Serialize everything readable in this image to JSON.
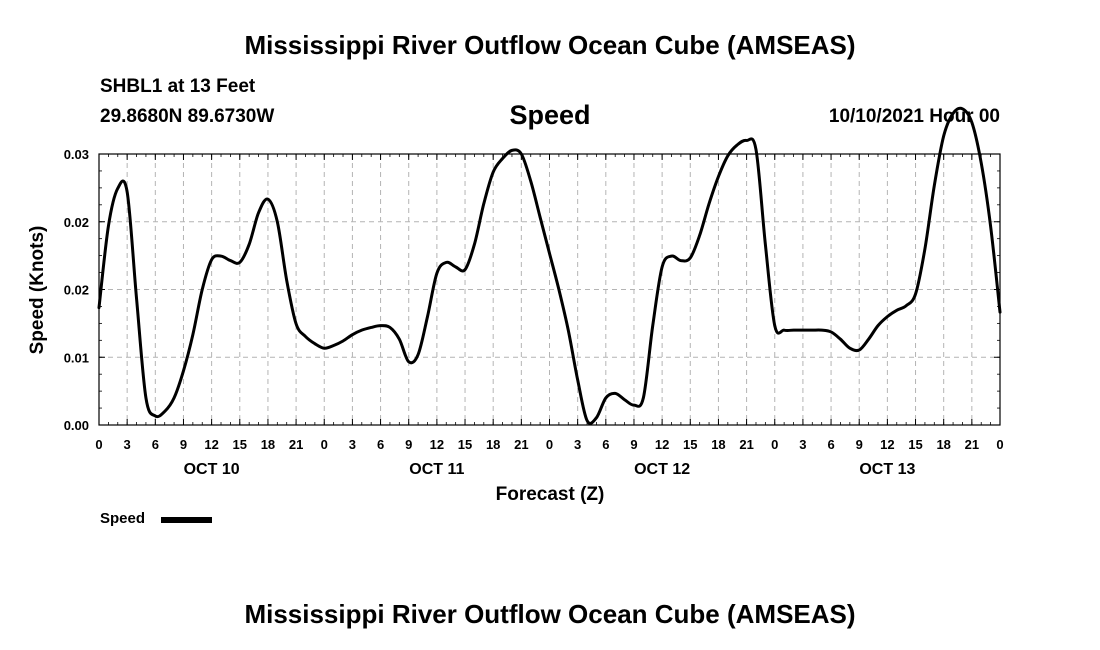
{
  "header": {
    "title": "Mississippi River Outflow Ocean Cube (AMSEAS)",
    "station": "SHBL1 at 13 Feet",
    "coords": "29.8680N  89.6730W",
    "variable": "Speed",
    "datetime": "10/10/2021 Hour 00"
  },
  "footer": {
    "title": "Mississippi River Outflow Ocean Cube (AMSEAS)"
  },
  "legend": {
    "label": "Speed",
    "color": "#000000"
  },
  "chart_data": {
    "type": "line",
    "xlabel": "Forecast (Z)",
    "ylabel": "Speed (Knots)",
    "ylim": [
      0,
      0.03
    ],
    "yticks": [
      "0.00",
      "0.01",
      "0.02",
      "0.02",
      "0.03"
    ],
    "xlim_hours": [
      0,
      96
    ],
    "xtick_labels": [
      "0",
      "3",
      "6",
      "9",
      "12",
      "15",
      "18",
      "21",
      "0",
      "3",
      "6",
      "9",
      "12",
      "15",
      "18",
      "21",
      "0",
      "3",
      "6",
      "9",
      "12",
      "15",
      "18",
      "21",
      "0",
      "3",
      "6",
      "9",
      "12",
      "15",
      "18",
      "21",
      "0"
    ],
    "day_labels": [
      "OCT 10",
      "OCT 11",
      "OCT 12",
      "OCT 13"
    ],
    "grid": true,
    "series": [
      {
        "name": "Speed",
        "color": "#000000",
        "points": [
          [
            0,
            0.013
          ],
          [
            1,
            0.022
          ],
          [
            2,
            0.0262
          ],
          [
            3,
            0.0258
          ],
          [
            4,
            0.014
          ],
          [
            5,
            0.003
          ],
          [
            6,
            0.001
          ],
          [
            7,
            0.0015
          ],
          [
            8,
            0.003
          ],
          [
            9,
            0.006
          ],
          [
            10,
            0.01
          ],
          [
            11,
            0.015
          ],
          [
            12,
            0.0183
          ],
          [
            13,
            0.0187
          ],
          [
            14,
            0.0182
          ],
          [
            15,
            0.018
          ],
          [
            16,
            0.02
          ],
          [
            17,
            0.0235
          ],
          [
            18,
            0.025
          ],
          [
            19,
            0.0225
          ],
          [
            20,
            0.016
          ],
          [
            21,
            0.0112
          ],
          [
            22,
            0.0098
          ],
          [
            23,
            0.009
          ],
          [
            24,
            0.0085
          ],
          [
            25,
            0.0088
          ],
          [
            26,
            0.0093
          ],
          [
            27,
            0.01
          ],
          [
            28,
            0.0105
          ],
          [
            29,
            0.0108
          ],
          [
            30,
            0.011
          ],
          [
            31,
            0.0108
          ],
          [
            32,
            0.0095
          ],
          [
            33,
            0.007
          ],
          [
            34,
            0.0078
          ],
          [
            35,
            0.012
          ],
          [
            36,
            0.0168
          ],
          [
            37,
            0.018
          ],
          [
            38,
            0.0175
          ],
          [
            39,
            0.0172
          ],
          [
            40,
            0.02
          ],
          [
            41,
            0.0245
          ],
          [
            42,
            0.028
          ],
          [
            43,
            0.0295
          ],
          [
            44,
            0.0304
          ],
          [
            45,
            0.03
          ],
          [
            46,
            0.027
          ],
          [
            47,
            0.023
          ],
          [
            48,
            0.019
          ],
          [
            49,
            0.015
          ],
          [
            50,
            0.0105
          ],
          [
            51,
            0.005
          ],
          [
            52,
            0.0005
          ],
          [
            53,
            0.0008
          ],
          [
            54,
            0.003
          ],
          [
            55,
            0.0035
          ],
          [
            56,
            0.0028
          ],
          [
            57,
            0.0022
          ],
          [
            58,
            0.003
          ],
          [
            59,
            0.011
          ],
          [
            60,
            0.0175
          ],
          [
            61,
            0.0187
          ],
          [
            62,
            0.0182
          ],
          [
            63,
            0.0185
          ],
          [
            64,
            0.021
          ],
          [
            65,
            0.0245
          ],
          [
            66,
            0.0275
          ],
          [
            67,
            0.0298
          ],
          [
            68,
            0.031
          ],
          [
            69,
            0.0315
          ],
          [
            70,
            0.0305
          ],
          [
            71,
            0.02
          ],
          [
            72,
            0.011
          ],
          [
            73,
            0.0105
          ],
          [
            74,
            0.0105
          ],
          [
            75,
            0.0105
          ],
          [
            76,
            0.0105
          ],
          [
            77,
            0.0105
          ],
          [
            78,
            0.0103
          ],
          [
            79,
            0.0095
          ],
          [
            80,
            0.0085
          ],
          [
            81,
            0.0083
          ],
          [
            82,
            0.0095
          ],
          [
            83,
            0.011
          ],
          [
            84,
            0.012
          ],
          [
            85,
            0.0127
          ],
          [
            86,
            0.0132
          ],
          [
            87,
            0.0145
          ],
          [
            88,
            0.0195
          ],
          [
            89,
            0.0265
          ],
          [
            90,
            0.032
          ],
          [
            91,
            0.0345
          ],
          [
            92,
            0.035
          ],
          [
            93,
            0.0335
          ],
          [
            94,
            0.029
          ],
          [
            95,
            0.022
          ],
          [
            96,
            0.0125
          ]
        ]
      }
    ]
  }
}
